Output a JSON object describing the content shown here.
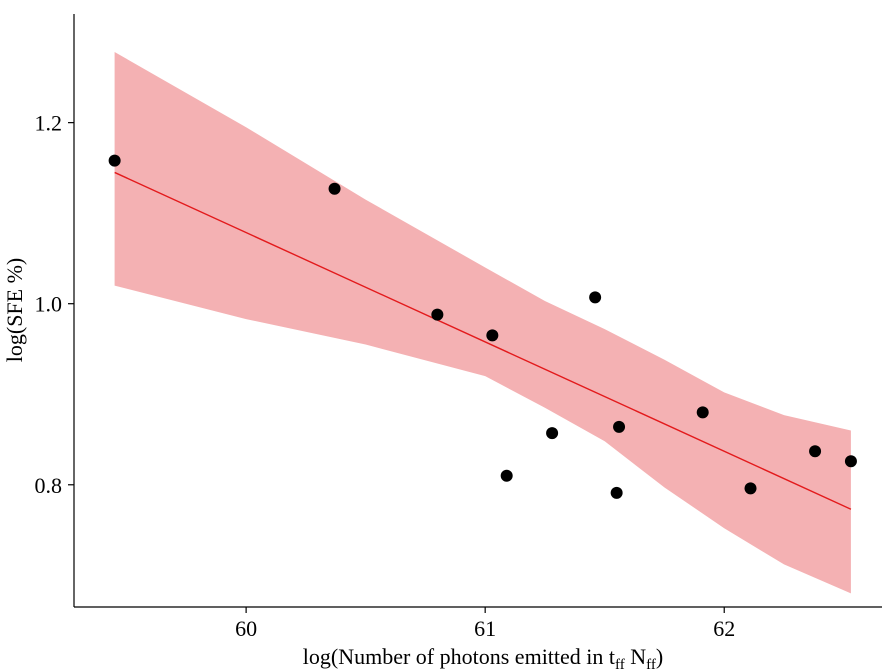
{
  "chart_data": {
    "type": "scatter",
    "title": "",
    "xlabel": {
      "prefix": "log(Number of photons emitted in t",
      "sub1": "ff",
      "mid": " N",
      "sub2": "ff",
      "suffix": ")"
    },
    "ylabel": "log(SFE %)",
    "xlim": [
      59.28,
      62.66
    ],
    "ylim": [
      0.665,
      1.32
    ],
    "xticks": [
      60,
      61,
      62
    ],
    "xtick_labels": [
      "60",
      "61",
      "62"
    ],
    "yticks": [
      0.8,
      1.0,
      1.2
    ],
    "ytick_labels": [
      "0.8",
      "1.0",
      "1.2"
    ],
    "grid": false,
    "legend": "none",
    "colors": {
      "points": "#000000",
      "fit_line": "#e31a1c",
      "band": "#f4b1b3"
    },
    "series": [
      {
        "type": "scatter",
        "x": [
          59.45,
          60.37,
          60.8,
          61.03,
          61.09,
          61.28,
          61.46,
          61.55,
          61.56,
          61.91,
          62.11,
          62.38,
          62.53
        ],
        "y": [
          1.158,
          1.127,
          0.988,
          0.965,
          0.81,
          0.857,
          1.007,
          0.791,
          0.864,
          0.88,
          0.796,
          0.837,
          0.826
        ]
      },
      {
        "type": "line",
        "x": [
          59.45,
          62.53
        ],
        "y": [
          1.145,
          0.773
        ]
      },
      {
        "type": "area",
        "x": [
          59.45,
          60.0,
          60.5,
          61.0,
          61.25,
          61.5,
          61.75,
          62.0,
          62.25,
          62.53
        ],
        "y_upper": [
          1.278,
          1.195,
          1.115,
          1.04,
          1.003,
          0.972,
          0.938,
          0.902,
          0.877,
          0.86
        ],
        "y_lower": [
          1.02,
          0.983,
          0.955,
          0.92,
          0.885,
          0.848,
          0.797,
          0.752,
          0.712,
          0.68
        ]
      }
    ]
  }
}
